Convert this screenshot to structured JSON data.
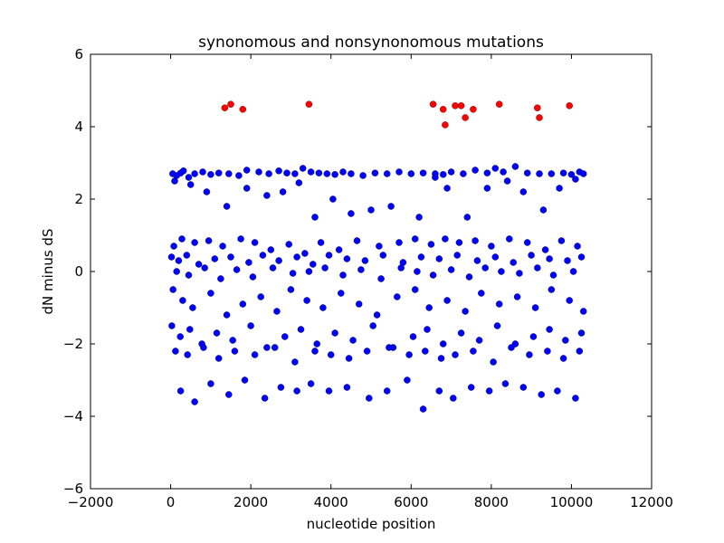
{
  "chart_data": {
    "type": "scatter",
    "title": "synonomous and nonsynonomous mutations",
    "xlabel": "nucleotide position",
    "ylabel": "dN minus dS",
    "xlim": [
      -2000,
      12000
    ],
    "ylim": [
      -6,
      6
    ],
    "xticks": [
      -2000,
      0,
      2000,
      4000,
      6000,
      8000,
      10000,
      12000
    ],
    "yticks": [
      -6,
      -4,
      -2,
      0,
      2,
      4,
      6
    ],
    "grid": false,
    "colors": {
      "blue": "#0000ff",
      "red": "#ff0000"
    },
    "series": [
      {
        "color": "#ff0000",
        "x": [
          1350,
          1500,
          1800,
          3450,
          6550,
          6800,
          6850,
          7100,
          7250,
          7350,
          7550,
          8200,
          9150,
          9200,
          9950
        ],
        "y": [
          4.52,
          4.62,
          4.48,
          4.62,
          4.62,
          4.48,
          4.05,
          4.58,
          4.58,
          4.25,
          4.48,
          4.62,
          4.52,
          4.25,
          4.58
        ]
      },
      {
        "color": "#0000ff",
        "x": [
          50,
          150,
          250,
          320,
          450,
          600,
          800,
          1000,
          1200,
          1450,
          1700,
          1900,
          2200,
          2450,
          2700,
          2900,
          3100,
          3300,
          3500,
          3700,
          3900,
          4100,
          4300,
          4500,
          4800,
          5100,
          5400,
          5700,
          6000,
          6300,
          6600,
          6800,
          7000,
          7300,
          7600,
          7900,
          8100,
          8300,
          8600,
          8900,
          9200,
          9500,
          9800,
          10000,
          10200,
          10300,
          100,
          500,
          900,
          1400,
          1900,
          2400,
          2800,
          3200,
          3600,
          4050,
          4500,
          5000,
          5500,
          6200,
          6600,
          6900,
          7400,
          7900,
          8400,
          8800,
          9300,
          9700,
          10100,
          80,
          280,
          600,
          950,
          1300,
          1750,
          2100,
          2500,
          2950,
          3350,
          3750,
          4200,
          4650,
          5200,
          5700,
          6100,
          6500,
          6850,
          7200,
          7600,
          8000,
          8450,
          8900,
          9350,
          9750,
          10150,
          20,
          200,
          400,
          700,
          1100,
          1500,
          1950,
          2300,
          2700,
          3150,
          3550,
          3950,
          4400,
          4850,
          5300,
          5800,
          6250,
          6700,
          7150,
          7650,
          8100,
          8550,
          9000,
          9450,
          9900,
          10250,
          150,
          450,
          850,
          1250,
          1650,
          2050,
          2550,
          3050,
          3450,
          3850,
          4300,
          4750,
          5250,
          5750,
          6150,
          6550,
          7000,
          7450,
          7850,
          8250,
          8700,
          9150,
          9550,
          10050,
          60,
          300,
          550,
          1000,
          1400,
          1800,
          2250,
          2650,
          3000,
          3400,
          3800,
          4250,
          4700,
          5150,
          5650,
          6100,
          6450,
          6900,
          7350,
          7750,
          8200,
          8650,
          9100,
          9500,
          9950,
          10300,
          30,
          240,
          480,
          780,
          1150,
          1550,
          2000,
          2400,
          2850,
          3250,
          3650,
          4100,
          4550,
          5050,
          5550,
          6050,
          6400,
          6800,
          7250,
          7700,
          8150,
          8600,
          9050,
          9450,
          9850,
          10250,
          120,
          420,
          820,
          1200,
          1600,
          2100,
          2600,
          3100,
          3600,
          4000,
          4450,
          4900,
          5450,
          5950,
          6350,
          6750,
          7100,
          7550,
          8050,
          8500,
          8950,
          9400,
          9800,
          10200,
          250,
          600,
          1000,
          1450,
          1850,
          2350,
          2750,
          3150,
          3500,
          3950,
          4400,
          4950,
          5400,
          5900,
          6300,
          6700,
          7050,
          7500,
          7950,
          8350,
          8800,
          9250,
          9650,
          10100
        ],
        "y": [
          2.7,
          2.65,
          2.72,
          2.78,
          2.6,
          2.7,
          2.75,
          2.68,
          2.72,
          2.7,
          2.65,
          2.8,
          2.75,
          2.7,
          2.78,
          2.72,
          2.7,
          2.85,
          2.75,
          2.72,
          2.7,
          2.68,
          2.75,
          2.7,
          2.65,
          2.72,
          2.7,
          2.75,
          2.7,
          2.72,
          2.7,
          2.68,
          2.75,
          2.7,
          2.8,
          2.72,
          2.85,
          2.75,
          2.9,
          2.72,
          2.7,
          2.7,
          2.72,
          2.68,
          2.75,
          2.7,
          2.5,
          2.4,
          2.2,
          1.8,
          2.3,
          2.1,
          2.2,
          2.45,
          1.5,
          2.0,
          1.6,
          1.7,
          1.8,
          1.5,
          2.6,
          2.3,
          1.5,
          2.3,
          2.5,
          2.2,
          1.7,
          2.3,
          2.55,
          0.7,
          0.9,
          0.8,
          0.85,
          0.7,
          0.9,
          0.8,
          0.6,
          0.75,
          0.5,
          0.8,
          0.6,
          0.85,
          0.7,
          0.8,
          0.9,
          0.75,
          0.9,
          0.8,
          0.85,
          0.7,
          0.9,
          0.8,
          0.6,
          0.85,
          0.7,
          0.4,
          0.3,
          0.45,
          0.2,
          0.35,
          0.4,
          0.25,
          0.45,
          0.3,
          0.4,
          0.2,
          0.45,
          0.35,
          0.3,
          0.45,
          0.25,
          0.4,
          0.35,
          0.45,
          0.3,
          0.4,
          0.25,
          0.45,
          0.35,
          0.3,
          0.4,
          0.0,
          -0.1,
          0.1,
          -0.2,
          0.05,
          -0.15,
          0.1,
          -0.05,
          0.0,
          0.1,
          -0.1,
          0.05,
          -0.2,
          0.1,
          0.0,
          -0.1,
          0.05,
          -0.15,
          0.1,
          0.0,
          -0.05,
          0.1,
          -0.1,
          0.0,
          -0.5,
          -0.8,
          -1.0,
          -0.6,
          -1.2,
          -0.9,
          -0.7,
          -1.1,
          -0.5,
          -0.8,
          -1.0,
          -0.6,
          -0.9,
          -1.2,
          -0.7,
          -0.5,
          -1.0,
          -0.8,
          -1.1,
          -0.6,
          -0.9,
          -0.7,
          -1.0,
          -0.5,
          -0.8,
          -1.1,
          -1.5,
          -1.8,
          -1.6,
          -2.0,
          -1.7,
          -1.9,
          -1.5,
          -2.1,
          -1.8,
          -1.6,
          -2.0,
          -1.7,
          -1.9,
          -1.5,
          -2.1,
          -1.8,
          -1.6,
          -2.0,
          -1.7,
          -1.9,
          -1.5,
          -2.0,
          -1.8,
          -1.6,
          -1.9,
          -1.7,
          -2.2,
          -2.3,
          -2.1,
          -2.4,
          -2.2,
          -2.3,
          -2.1,
          -2.5,
          -2.2,
          -2.3,
          -2.4,
          -2.2,
          -2.1,
          -2.3,
          -2.2,
          -2.4,
          -2.3,
          -2.2,
          -2.5,
          -2.1,
          -2.3,
          -2.2,
          -2.4,
          -2.2,
          -3.3,
          -3.6,
          -3.1,
          -3.4,
          -3.0,
          -3.5,
          -3.2,
          -3.3,
          -3.1,
          -3.3,
          -3.2,
          -3.5,
          -3.3,
          -3.0,
          -3.8,
          -3.3,
          -3.5,
          -3.2,
          -3.3,
          -3.1,
          -3.2,
          -3.4,
          -3.3,
          -3.5
        ]
      }
    ]
  }
}
